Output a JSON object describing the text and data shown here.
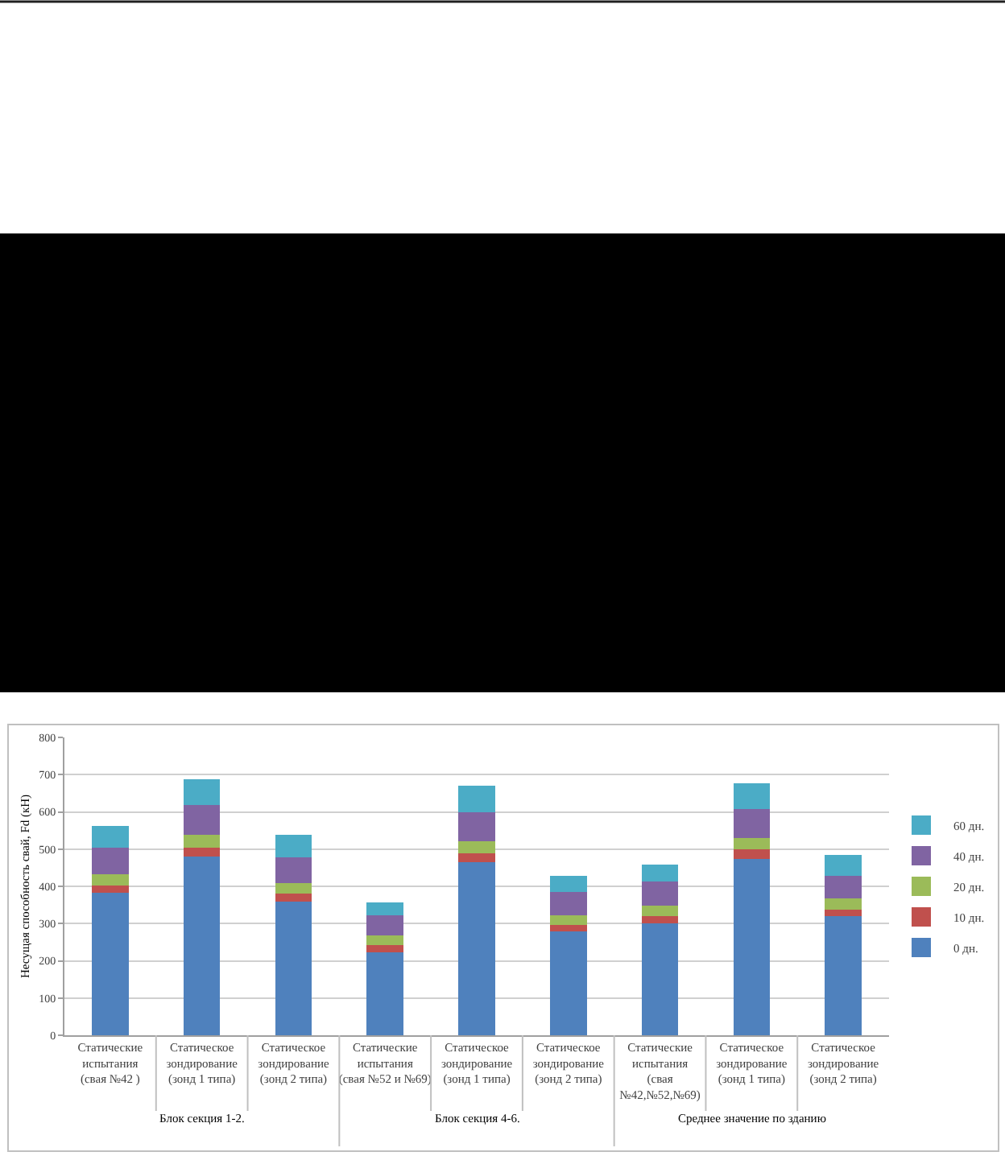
{
  "chart_data": {
    "type": "bar",
    "stacked": true,
    "ylabel": "Несущая способность свай, Fd (кН)",
    "categories": [
      "Статические испытания (свая №42 )",
      "Статическое зондирование (зонд 1 типа)",
      "Статическое зондирование (зонд 2 типа)",
      "Статические испытания (свая №52 и №69)",
      "Статическое зондирование (зонд 1 типа)",
      "Статическое зондирование (зонд 2 типа)",
      "Статические испытания (свая №42,№52,№69)",
      "Статическое зондирование (зонд 1 типа)",
      "Статическое зондирование (зонд 2 типа)"
    ],
    "series": [
      {
        "name": "0 дн.",
        "color": "#4f81bd",
        "values": [
          383,
          481,
          358,
          223,
          464,
          278,
          300,
          474,
          319
        ]
      },
      {
        "name": "10 дн.",
        "color": "#c0504d",
        "values": [
          20,
          22,
          22,
          19,
          24,
          19,
          20,
          25,
          19
        ]
      },
      {
        "name": "20 дн.",
        "color": "#9bbb59",
        "values": [
          29,
          35,
          29,
          26,
          34,
          25,
          28,
          30,
          29
        ]
      },
      {
        "name": "40 дн.",
        "color": "#8064a2",
        "values": [
          72,
          81,
          68,
          54,
          77,
          62,
          64,
          78,
          62
        ]
      },
      {
        "name": "60 дн.",
        "color": "#4bacc6",
        "values": [
          58,
          69,
          61,
          35,
          71,
          45,
          47,
          70,
          55
        ]
      }
    ],
    "annotations": [
      "Блок секция 1-2.",
      "Блок секция 4-6.",
      "Среднее значение по зданию"
    ],
    "ylim": [
      0,
      800
    ],
    "yticks": [
      0,
      100,
      200,
      300,
      400,
      500,
      600,
      700,
      800
    ],
    "grid": "y",
    "legend": "right"
  }
}
